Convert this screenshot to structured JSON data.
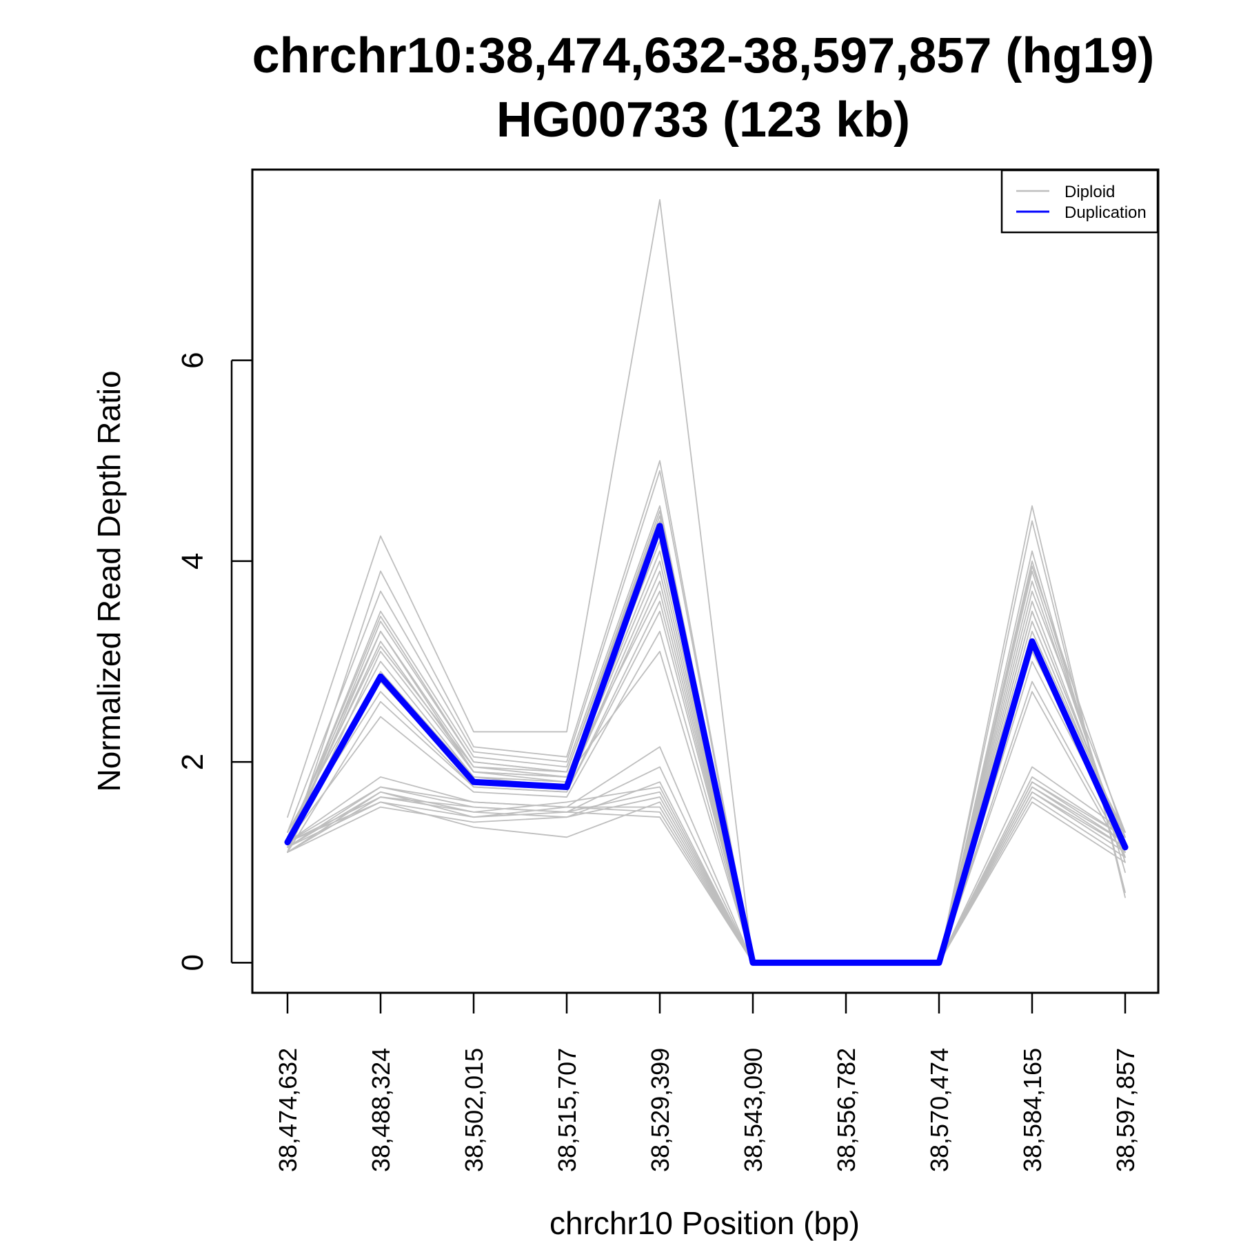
{
  "chart_data": {
    "type": "line",
    "title_line1": "chrchr10:38,474,632-38,597,857 (hg19)",
    "title_line2": "HG00733 (123 kb)",
    "xlabel": "chrchr10 Position (bp)",
    "ylabel": "Normalized Read Depth Ratio",
    "x_tick_labels": [
      "38,474,632",
      "38,488,324",
      "38,502,015",
      "38,515,707",
      "38,529,399",
      "38,543,090",
      "38,556,782",
      "38,570,474",
      "38,584,165",
      "38,597,857"
    ],
    "y_ticks": [
      0,
      2,
      4,
      6
    ],
    "ylim": [
      -0.3,
      7.9
    ],
    "grid": false,
    "legend": {
      "placement": "top-right",
      "entries": [
        {
          "label": "Diploid",
          "color": "#bebebe"
        },
        {
          "label": "Duplication",
          "color": "#0000ff"
        }
      ]
    },
    "diploid_color": "#bebebe",
    "duplication_color": "#0000ff",
    "series": [
      {
        "values": [
          1.2,
          2.85,
          1.8,
          1.75,
          4.35,
          0,
          0,
          0,
          3.2,
          1.15
        ]
      },
      {
        "values": [
          1.45,
          4.25,
          2.3,
          2.3,
          7.6,
          0,
          0,
          0,
          4.55,
          0.65
        ]
      },
      {
        "values": [
          1.1,
          3.9,
          2.15,
          2.05,
          5.0,
          0,
          0,
          0,
          4.4,
          0.7
        ]
      },
      {
        "values": [
          1.3,
          3.7,
          2.1,
          2.0,
          4.9,
          0,
          0,
          0,
          4.1,
          0.9
        ]
      },
      {
        "values": [
          1.2,
          3.5,
          2.05,
          1.95,
          4.55,
          0,
          0,
          0,
          4.0,
          1.0
        ]
      },
      {
        "values": [
          1.15,
          3.4,
          2.0,
          1.9,
          4.5,
          0,
          0,
          0,
          3.9,
          1.05
        ]
      },
      {
        "values": [
          1.25,
          3.3,
          1.95,
          1.9,
          4.4,
          0,
          0,
          0,
          3.8,
          1.1
        ]
      },
      {
        "values": [
          1.2,
          3.2,
          1.9,
          1.85,
          4.2,
          0,
          0,
          0,
          3.6,
          1.15
        ]
      },
      {
        "values": [
          1.1,
          3.1,
          1.9,
          1.8,
          4.1,
          0,
          0,
          0,
          3.5,
          1.2
        ]
      },
      {
        "values": [
          1.3,
          3.0,
          1.85,
          1.8,
          4.0,
          0,
          0,
          0,
          3.4,
          1.2
        ]
      },
      {
        "values": [
          1.15,
          2.9,
          1.85,
          1.75,
          3.9,
          0,
          0,
          0,
          3.3,
          1.25
        ]
      },
      {
        "values": [
          1.2,
          2.8,
          1.8,
          1.75,
          3.8,
          0,
          0,
          0,
          3.1,
          1.3
        ]
      },
      {
        "values": [
          1.25,
          2.7,
          1.75,
          1.7,
          3.6,
          0,
          0,
          0,
          3.0,
          1.2
        ]
      },
      {
        "values": [
          1.1,
          2.6,
          1.75,
          1.7,
          3.5,
          0,
          0,
          0,
          2.8,
          1.1
        ]
      },
      {
        "values": [
          1.2,
          2.45,
          1.7,
          1.65,
          3.3,
          0,
          0,
          0,
          2.7,
          1.05
        ]
      },
      {
        "values": [
          1.15,
          3.3,
          1.9,
          1.85,
          3.1,
          0,
          0,
          0,
          3.5,
          1.2
        ]
      },
      {
        "values": [
          1.2,
          3.45,
          2.0,
          1.9,
          4.45,
          0,
          0,
          0,
          3.95,
          1.25
        ]
      },
      {
        "values": [
          1.25,
          3.15,
          1.95,
          1.85,
          3.7,
          0,
          0,
          0,
          3.7,
          1.3
        ]
      },
      {
        "values": [
          1.2,
          1.85,
          1.6,
          1.55,
          2.15,
          0,
          0,
          0,
          1.95,
          1.3
        ]
      },
      {
        "values": [
          1.15,
          1.75,
          1.55,
          1.5,
          1.95,
          0,
          0,
          0,
          1.85,
          1.25
        ]
      },
      {
        "values": [
          1.1,
          1.7,
          1.5,
          1.45,
          1.8,
          0,
          0,
          0,
          1.8,
          1.2
        ]
      },
      {
        "values": [
          1.2,
          1.65,
          1.5,
          1.6,
          1.75,
          0,
          0,
          0,
          1.75,
          1.15
        ]
      },
      {
        "values": [
          1.15,
          1.6,
          1.45,
          1.5,
          1.7,
          0,
          0,
          0,
          1.7,
          1.1
        ]
      },
      {
        "values": [
          1.1,
          1.55,
          1.4,
          1.45,
          1.65,
          0,
          0,
          0,
          1.65,
          1.05
        ]
      },
      {
        "values": [
          1.2,
          1.6,
          1.35,
          1.25,
          1.6,
          0,
          0,
          0,
          1.6,
          1.0
        ]
      },
      {
        "values": [
          1.15,
          1.7,
          1.45,
          1.55,
          1.5,
          0,
          0,
          0,
          1.75,
          1.2
        ]
      },
      {
        "values": [
          1.1,
          1.65,
          1.55,
          1.5,
          1.45,
          0,
          0,
          0,
          1.7,
          1.15
        ]
      },
      {
        "values": [
          1.2,
          1.75,
          1.6,
          1.55,
          1.55,
          0,
          0,
          0,
          1.8,
          1.25
        ]
      }
    ]
  }
}
